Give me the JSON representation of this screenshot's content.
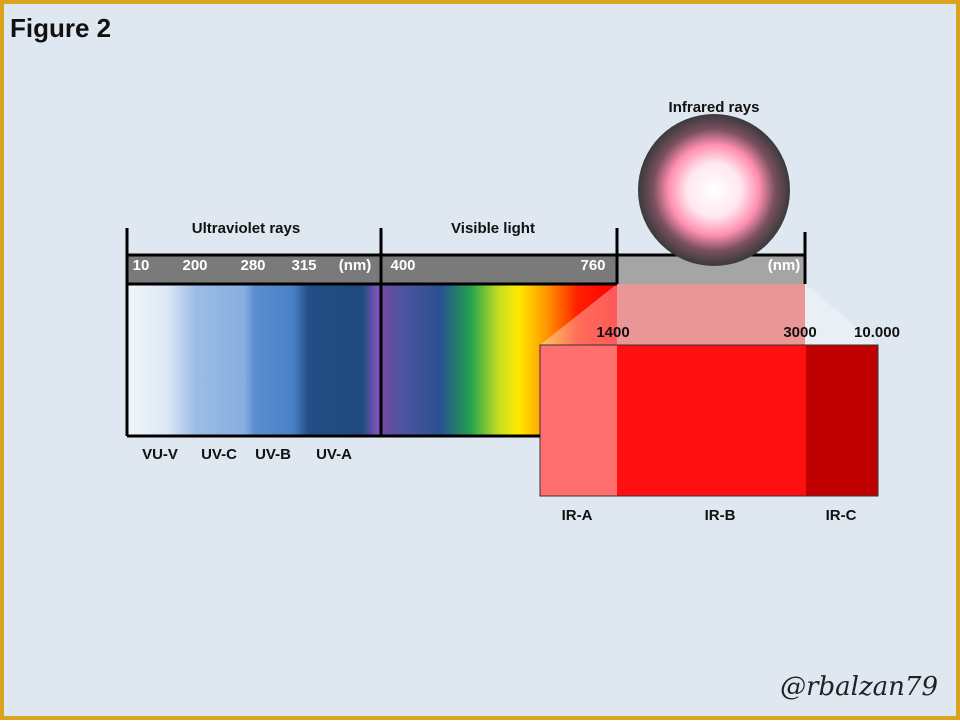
{
  "title": "Figure 2",
  "sections": [
    "Ultraviolet rays",
    "Visible light",
    "Infrared rays"
  ],
  "scale_labels": [
    "10",
    "200",
    "280",
    "315",
    "(nm)",
    "400",
    "760",
    "(nm)"
  ],
  "uv_bands": [
    "VU-V",
    "UV-C",
    "UV-B",
    "UV-A"
  ],
  "ir_scale": [
    "1400",
    "3000",
    "10.000"
  ],
  "ir_bands": [
    "IR-A",
    "IR-B",
    "IR-C"
  ],
  "signature": "@rbalzan79"
}
